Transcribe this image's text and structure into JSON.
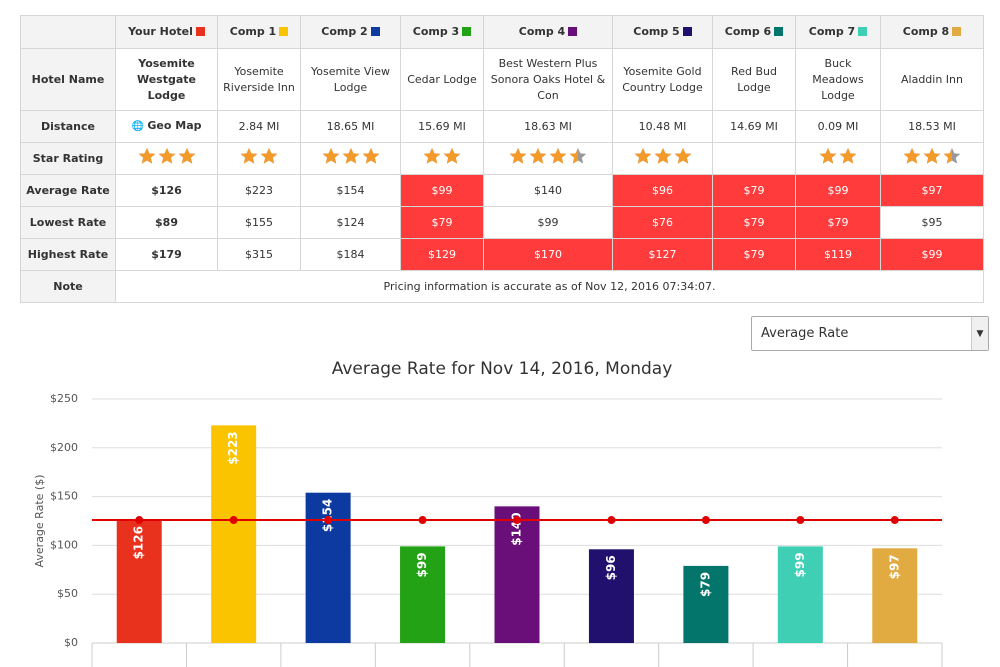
{
  "table": {
    "header": [
      "Your Hotel",
      "Comp 1",
      "Comp 2",
      "Comp 3",
      "Comp 4",
      "Comp 5",
      "Comp 6",
      "Comp 7",
      "Comp 8"
    ],
    "header_colors": [
      "#e8321e",
      "#fbc400",
      "#0d3aa0",
      "#22a214",
      "#6a0f7a",
      "#22106e",
      "#04756a",
      "#3ecfb5",
      "#e2ab41"
    ],
    "highlight_color": "#ff3b3b",
    "rows": [
      {
        "label": "Hotel Name",
        "cells": [
          "Yosemite Westgate Lodge",
          "Yosemite Riverside Inn",
          "Yosemite View Lodge",
          "Cedar Lodge",
          "Best Western Plus Sonora Oaks Hotel & Con",
          "Yosemite Gold Country Lodge",
          "Red Bud Lodge",
          "Buck Meadows Lodge",
          "Aladdin Inn"
        ]
      },
      {
        "label": "Distance",
        "cells": [
          "Geo Map",
          "2.84 MI",
          "18.65 MI",
          "15.69 MI",
          "18.63 MI",
          "10.48 MI",
          "14.69 MI",
          "0.09 MI",
          "18.53 MI"
        ]
      },
      {
        "label": "Star Rating",
        "stars": true,
        "cells": [
          3,
          2,
          3,
          2,
          3.5,
          3,
          null,
          2,
          2.5
        ]
      },
      {
        "label": "Average Rate",
        "cells": [
          "$126",
          "$223",
          "$154",
          "$99",
          "$140",
          "$96",
          "$79",
          "$99",
          "$97"
        ],
        "highlight": [
          3,
          5,
          6,
          7,
          8
        ]
      },
      {
        "label": "Lowest Rate",
        "cells": [
          "$89",
          "$155",
          "$124",
          "$79",
          "$99",
          "$76",
          "$79",
          "$79",
          "$95"
        ],
        "highlight": [
          3,
          5,
          6,
          7
        ]
      },
      {
        "label": "Highest Rate",
        "cells": [
          "$179",
          "$315",
          "$184",
          "$129",
          "$170",
          "$127",
          "$79",
          "$119",
          "$99"
        ],
        "highlight": [
          3,
          4,
          5,
          6,
          7,
          8
        ]
      }
    ],
    "note": {
      "label": "Note",
      "text": "Pricing information is accurate as of Nov 12, 2016 07:34:07."
    }
  },
  "select": "Average Rate",
  "chart_data": {
    "type": "bar",
    "title": "Average Rate for Nov 14, 2016, Monday",
    "y_label": "Average Rate ($)",
    "values": [
      126,
      223,
      154,
      99,
      140,
      96,
      79,
      99,
      97
    ],
    "value_labels": [
      "$126",
      "$223",
      "$154",
      "$99",
      "$140",
      "$96",
      "$79",
      "$99",
      "$97"
    ],
    "colors": [
      "#e8321e",
      "#fbc400",
      "#0d3aa0",
      "#22a214",
      "#6a0f7a",
      "#22106e",
      "#04756a",
      "#3ecfb5",
      "#e2ab41"
    ],
    "reference_line": {
      "value": 126,
      "color": "#e00000"
    },
    "ylim": [
      0,
      250
    ],
    "yticks": [
      {
        "value": 0,
        "label": "$0"
      },
      {
        "value": 50,
        "label": "$50"
      },
      {
        "value": 100,
        "label": "$100"
      },
      {
        "value": 150,
        "label": "$150"
      },
      {
        "value": 200,
        "label": "$200"
      },
      {
        "value": 250,
        "label": "$250"
      }
    ],
    "grid": true
  }
}
